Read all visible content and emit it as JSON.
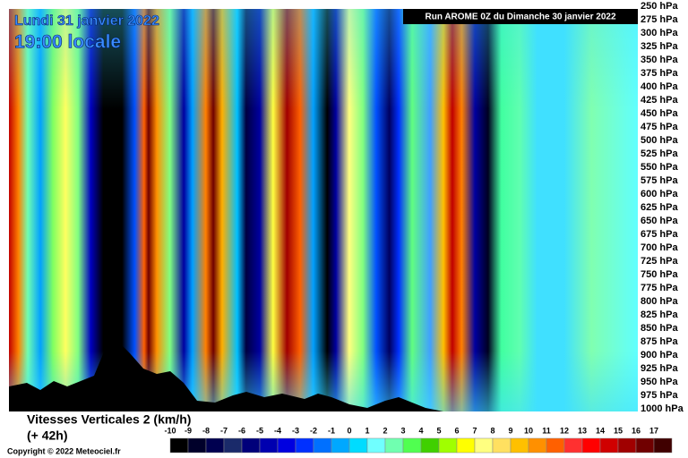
{
  "header": {
    "date": "Lundi 31 janvier 2022",
    "time": "19:00 locale",
    "run": "Run AROME 0Z du Dimanche 30 janvier 2022"
  },
  "levels": [
    "250 hPa",
    "275 hPa",
    "300 hPa",
    "325 hPa",
    "350 hPa",
    "375 hPa",
    "400 hPa",
    "425 hPa",
    "450 hPa",
    "475 hPa",
    "500 hPa",
    "525 hPa",
    "550 hPa",
    "575 hPa",
    "600 hPa",
    "625 hPa",
    "650 hPa",
    "675 hPa",
    "700 hPa",
    "725 hPa",
    "750 hPa",
    "775 hPa",
    "800 hPa",
    "825 hPa",
    "850 hPa",
    "875 hPa",
    "900 hPa",
    "925 hPa",
    "950 hPa",
    "975 hPa",
    "1000 hPa"
  ],
  "footer": {
    "variable": "Vitesses Verticales 2 (km/h)",
    "lead": "(+ 42h)",
    "copyright": "Copyright © 2022 Meteociel.fr"
  },
  "scale": {
    "labels": [
      -10,
      -9,
      -8,
      -7,
      -6,
      -5,
      -4,
      -3,
      -2,
      -1,
      0,
      1,
      2,
      3,
      4,
      5,
      6,
      7,
      8,
      9,
      10,
      11,
      12,
      13,
      14,
      15,
      16,
      17
    ],
    "colors": [
      "#000000",
      "#00002a",
      "#000050",
      "#1a2a6a",
      "#00007a",
      "#0000b0",
      "#0000e0",
      "#0030ff",
      "#0070ff",
      "#00a8ff",
      "#00dcff",
      "#70ffff",
      "#70ffb0",
      "#50ff50",
      "#40d000",
      "#a0ff00",
      "#ffff00",
      "#ffff80",
      "#ffe060",
      "#ffc000",
      "#ff9000",
      "#ff6000",
      "#ff3030",
      "#ff0000",
      "#d00000",
      "#a00000",
      "#700000",
      "#400000"
    ]
  }
}
